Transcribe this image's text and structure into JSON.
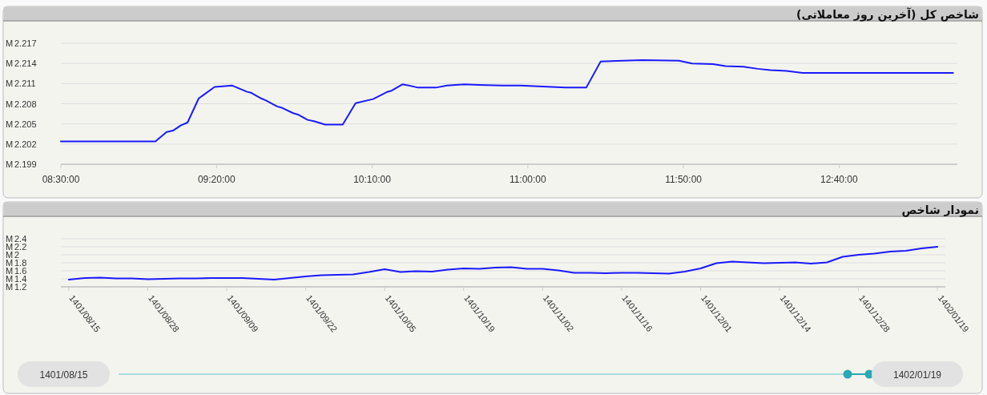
{
  "chart_data": [
    {
      "type": "line",
      "title": "شاخص کل (آخرین روز معاملاتی)",
      "color": "#1a1aff",
      "grid": "y",
      "x": [
        8.5,
        9.006,
        9.066,
        9.1,
        9.143,
        9.178,
        9.238,
        9.263,
        9.323,
        9.418,
        9.495,
        9.521,
        9.572,
        9.598,
        9.658,
        9.684,
        9.744,
        9.769,
        9.821,
        9.855,
        9.915,
        10.009,
        10.078,
        10.172,
        10.25,
        10.267,
        10.33,
        10.413,
        10.507,
        10.567,
        10.661,
        10.738,
        10.863,
        10.961,
        11.202,
        11.313,
        11.39,
        11.613,
        11.81,
        11.879,
        11.991,
        12.059,
        12.154,
        12.231,
        12.299,
        12.385,
        12.471,
        13.277
      ],
      "values": [
        2.2024,
        2.2024,
        2.2038,
        2.204,
        2.2048,
        2.2052,
        2.2088,
        2.2093,
        2.2105,
        2.2107,
        2.2098,
        2.2096,
        2.2088,
        2.2085,
        2.2076,
        2.2074,
        2.2066,
        2.2064,
        2.2056,
        2.2054,
        2.2049,
        2.2049,
        2.2081,
        2.2087,
        2.2098,
        2.2099,
        2.2109,
        2.2104,
        2.2104,
        2.2107,
        2.2109,
        2.2108,
        2.2107,
        2.2107,
        2.2104,
        2.2104,
        2.2143,
        2.2145,
        2.2144,
        2.214,
        2.2139,
        2.2136,
        2.2135,
        2.2132,
        2.213,
        2.2129,
        2.2126,
        2.2126
      ],
      "xlim": [
        8.5,
        13.3
      ],
      "xticks": [
        {
          "value": 8.5,
          "label": "08:30:00"
        },
        {
          "value": 9.3333,
          "label": "09:20:00"
        },
        {
          "value": 10.1667,
          "label": "10:10:00"
        },
        {
          "value": 11.0,
          "label": "11:00:00"
        },
        {
          "value": 11.8333,
          "label": "11:50:00"
        },
        {
          "value": 12.6667,
          "label": "12:40:00"
        }
      ],
      "ylim": [
        2.199,
        2.217
      ],
      "ylabel": "M",
      "yticks": [
        2.199,
        2.202,
        2.205,
        2.208,
        2.211,
        2.214,
        2.217
      ]
    },
    {
      "type": "line",
      "title": "نمودار شاخص",
      "color": "#1a1aff",
      "grid": "y",
      "categories": [
        "1401/08/15",
        null,
        null,
        null,
        null,
        "1401/08/28",
        null,
        null,
        null,
        null,
        "1401/09/09",
        null,
        null,
        null,
        null,
        "1401/09/22",
        null,
        null,
        null,
        null,
        "1401/10/05",
        null,
        null,
        null,
        null,
        "1401/10/19",
        null,
        null,
        null,
        null,
        "1401/11/02",
        null,
        null,
        null,
        null,
        "1401/11/16",
        null,
        null,
        null,
        null,
        "1401/12/01",
        null,
        null,
        null,
        null,
        "1401/12/14",
        null,
        null,
        null,
        null,
        "1401/12/28",
        null,
        null,
        null,
        null,
        "1402/01/19"
      ],
      "values": [
        1.38,
        1.42,
        1.43,
        1.41,
        1.41,
        1.39,
        1.4,
        1.41,
        1.41,
        1.42,
        1.42,
        1.42,
        1.4,
        1.38,
        1.42,
        1.46,
        1.49,
        1.5,
        1.51,
        1.57,
        1.64,
        1.57,
        1.59,
        1.58,
        1.63,
        1.66,
        1.65,
        1.68,
        1.69,
        1.65,
        1.65,
        1.61,
        1.55,
        1.55,
        1.54,
        1.55,
        1.55,
        1.54,
        1.53,
        1.58,
        1.66,
        1.79,
        1.83,
        1.81,
        1.79,
        1.8,
        1.81,
        1.78,
        1.81,
        1.95,
        2.0,
        2.03,
        2.08,
        2.1,
        2.16,
        2.2
      ],
      "ylim": [
        1.2,
        2.4
      ],
      "ylabel": "M",
      "yticks": [
        1.2,
        1.4,
        1.6,
        1.8,
        2,
        2.2,
        2.4
      ],
      "annotations": [
        "1401/08/15",
        "1402/01/19"
      ]
    }
  ]
}
